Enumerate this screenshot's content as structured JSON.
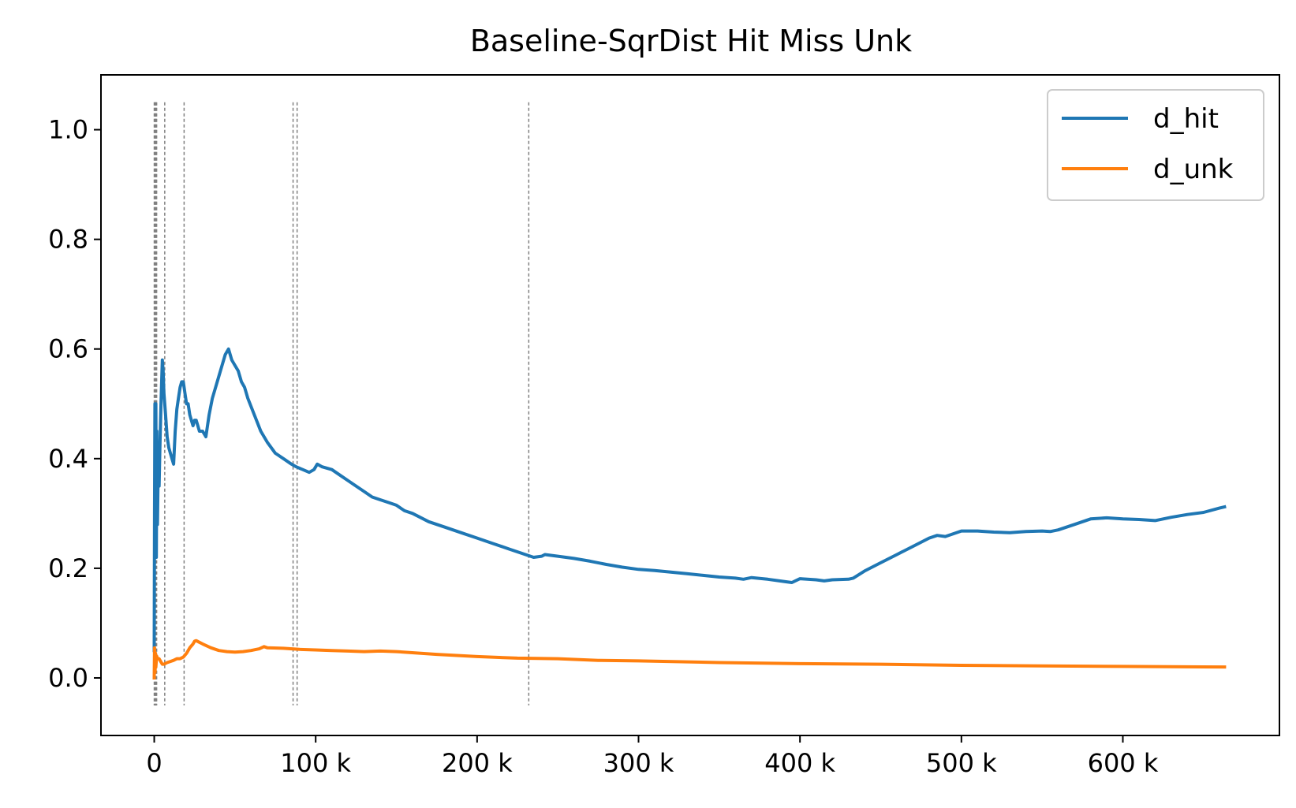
{
  "chart_data": {
    "type": "line",
    "title": "Baseline-SqrDist Hit Miss Unk",
    "xlabel": "",
    "ylabel": "",
    "xlim": [
      -33000,
      697000
    ],
    "ylim": [
      -0.105,
      1.1
    ],
    "x_ticks": [
      {
        "value": 0,
        "label": "0"
      },
      {
        "value": 100000,
        "label": "100 k"
      },
      {
        "value": 200000,
        "label": "200 k"
      },
      {
        "value": 300000,
        "label": "300 k"
      },
      {
        "value": 400000,
        "label": "400 k"
      },
      {
        "value": 500000,
        "label": "500 k"
      },
      {
        "value": 600000,
        "label": "600 k"
      }
    ],
    "y_ticks": [
      {
        "value": 0.0,
        "label": "0.0"
      },
      {
        "value": 0.2,
        "label": "0.2"
      },
      {
        "value": 0.4,
        "label": "0.4"
      },
      {
        "value": 0.6,
        "label": "0.6"
      },
      {
        "value": 0.8,
        "label": "0.8"
      },
      {
        "value": 1.0,
        "label": "1.0"
      }
    ],
    "grid": false,
    "legend_position": "top-right",
    "vlines": {
      "x": [
        0,
        300,
        600,
        900,
        1200,
        1500,
        6500,
        18500,
        86000,
        88500,
        232000
      ],
      "y_range": [
        -0.05,
        1.05
      ],
      "color": "#808080",
      "style": "dashed"
    },
    "series": [
      {
        "name": "d_hit",
        "color": "#1f77b4",
        "x": [
          0,
          200,
          400,
          700,
          1000,
          1300,
          1600,
          2000,
          2500,
          3000,
          3500,
          4200,
          5000,
          5500,
          6000,
          7000,
          8000,
          9000,
          10000,
          11000,
          12000,
          13000,
          14000,
          15000,
          16000,
          17000,
          18000,
          19000,
          20000,
          21000,
          22000,
          23000,
          24000,
          25000,
          26000,
          27000,
          28000,
          30000,
          32000,
          34000,
          36000,
          38000,
          40000,
          42000,
          44000,
          46000,
          48000,
          50000,
          52000,
          54000,
          56000,
          58000,
          62000,
          66000,
          70000,
          75000,
          80000,
          85000,
          88000,
          92000,
          96000,
          99000,
          101000,
          104000,
          110000,
          115000,
          120000,
          125000,
          130000,
          135000,
          140000,
          145000,
          150000,
          155000,
          160000,
          170000,
          180000,
          190000,
          200000,
          210000,
          220000,
          230000,
          235000,
          240000,
          242000,
          250000,
          260000,
          270000,
          280000,
          290000,
          300000,
          310000,
          320000,
          330000,
          340000,
          350000,
          360000,
          365000,
          370000,
          380000,
          390000,
          395000,
          400000,
          410000,
          415000,
          420000,
          430000,
          433000,
          440000,
          450000,
          460000,
          470000,
          480000,
          485000,
          490000,
          500000,
          510000,
          520000,
          530000,
          540000,
          550000,
          555000,
          560000,
          570000,
          580000,
          590000,
          600000,
          610000,
          620000,
          630000,
          640000,
          650000,
          660000,
          663000
        ],
        "y": [
          0.05,
          0.3,
          0.5,
          0.25,
          0.5,
          0.22,
          0.45,
          0.28,
          0.4,
          0.35,
          0.42,
          0.5,
          0.58,
          0.56,
          0.52,
          0.48,
          0.44,
          0.42,
          0.41,
          0.4,
          0.39,
          0.45,
          0.49,
          0.51,
          0.53,
          0.54,
          0.54,
          0.52,
          0.5,
          0.5,
          0.48,
          0.47,
          0.46,
          0.47,
          0.47,
          0.46,
          0.45,
          0.45,
          0.44,
          0.48,
          0.51,
          0.53,
          0.55,
          0.57,
          0.59,
          0.6,
          0.58,
          0.57,
          0.56,
          0.54,
          0.53,
          0.51,
          0.48,
          0.45,
          0.43,
          0.41,
          0.4,
          0.39,
          0.385,
          0.38,
          0.375,
          0.38,
          0.39,
          0.385,
          0.38,
          0.37,
          0.36,
          0.35,
          0.34,
          0.33,
          0.325,
          0.32,
          0.315,
          0.305,
          0.3,
          0.285,
          0.275,
          0.265,
          0.255,
          0.245,
          0.235,
          0.225,
          0.22,
          0.222,
          0.225,
          0.222,
          0.218,
          0.213,
          0.207,
          0.202,
          0.198,
          0.196,
          0.193,
          0.19,
          0.187,
          0.184,
          0.182,
          0.18,
          0.183,
          0.18,
          0.176,
          0.174,
          0.181,
          0.179,
          0.177,
          0.179,
          0.18,
          0.182,
          0.195,
          0.21,
          0.225,
          0.24,
          0.255,
          0.26,
          0.258,
          0.268,
          0.268,
          0.266,
          0.265,
          0.267,
          0.268,
          0.267,
          0.27,
          0.28,
          0.29,
          0.292,
          0.29,
          0.289,
          0.287,
          0.293,
          0.298,
          0.302,
          0.31,
          0.312
        ]
      },
      {
        "name": "d_unk",
        "color": "#ff7f0e",
        "x": [
          0,
          200,
          500,
          800,
          1000,
          1500,
          2000,
          3000,
          4000,
          5000,
          6000,
          8000,
          10000,
          12000,
          14000,
          16000,
          18000,
          20000,
          22000,
          24000,
          25000,
          26000,
          28000,
          30000,
          35000,
          40000,
          45000,
          50000,
          55000,
          60000,
          65000,
          68000,
          70000,
          80000,
          90000,
          100000,
          110000,
          120000,
          130000,
          140000,
          150000,
          175000,
          200000,
          225000,
          250000,
          275000,
          300000,
          350000,
          400000,
          450000,
          500000,
          550000,
          600000,
          663000
        ],
        "y": [
          0.0,
          0.055,
          0.01,
          0.045,
          0.02,
          0.04,
          0.035,
          0.035,
          0.03,
          0.025,
          0.025,
          0.028,
          0.03,
          0.032,
          0.035,
          0.035,
          0.038,
          0.045,
          0.055,
          0.062,
          0.067,
          0.068,
          0.065,
          0.062,
          0.055,
          0.05,
          0.048,
          0.047,
          0.048,
          0.05,
          0.053,
          0.057,
          0.055,
          0.054,
          0.052,
          0.051,
          0.05,
          0.049,
          0.048,
          0.049,
          0.048,
          0.043,
          0.039,
          0.036,
          0.035,
          0.032,
          0.031,
          0.028,
          0.026,
          0.025,
          0.023,
          0.022,
          0.021,
          0.02
        ]
      }
    ]
  }
}
